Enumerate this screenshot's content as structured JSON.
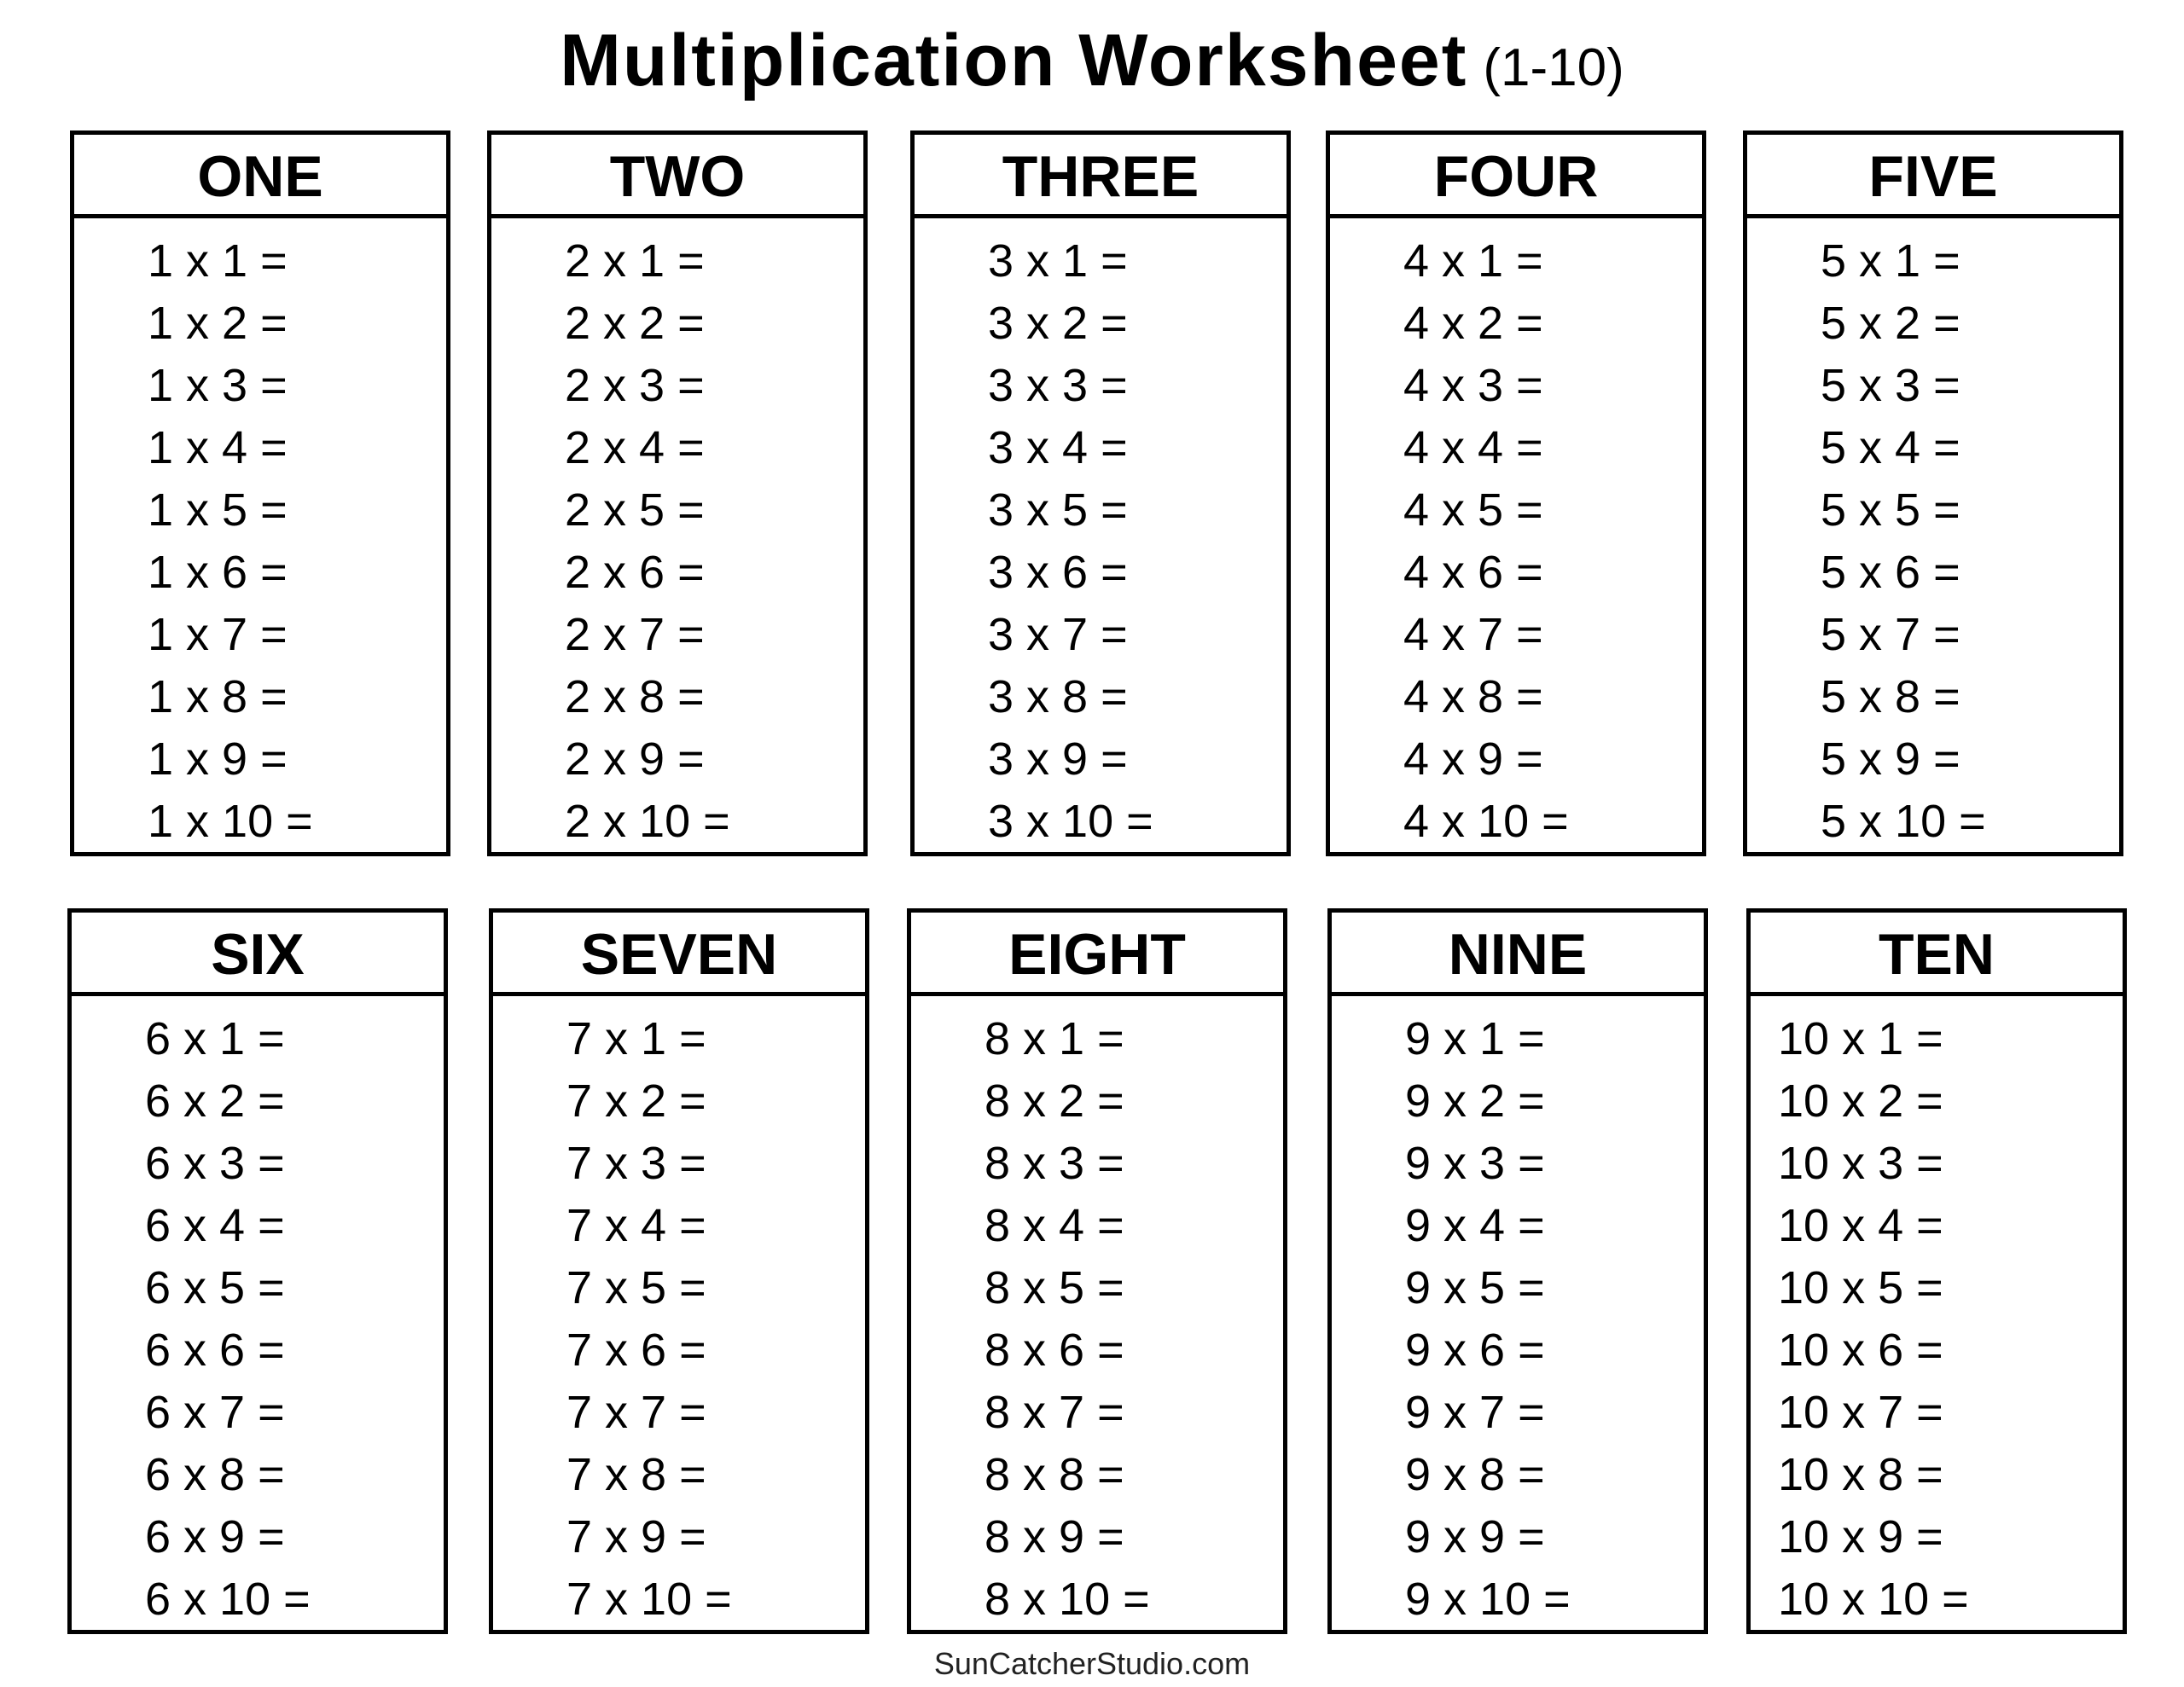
{
  "title": {
    "main": "Multiplication Worksheet",
    "range": "(1-10)"
  },
  "tables": [
    {
      "label": "ONE",
      "n": 1
    },
    {
      "label": "TWO",
      "n": 2
    },
    {
      "label": "THREE",
      "n": 3
    },
    {
      "label": "FOUR",
      "n": 4
    },
    {
      "label": "FIVE",
      "n": 5
    },
    {
      "label": "SIX",
      "n": 6
    },
    {
      "label": "SEVEN",
      "n": 7
    },
    {
      "label": "EIGHT",
      "n": 8
    },
    {
      "label": "NINE",
      "n": 9
    },
    {
      "label": "TEN",
      "n": 10
    }
  ],
  "problem_format": "{n} x {m} =",
  "multipliers": [
    1,
    2,
    3,
    4,
    5,
    6,
    7,
    8,
    9,
    10
  ],
  "footer": "SunCatcherStudio.com"
}
